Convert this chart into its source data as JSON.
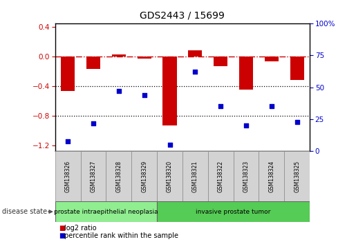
{
  "title": "GDS2443 / 15699",
  "samples": [
    "GSM138326",
    "GSM138327",
    "GSM138328",
    "GSM138329",
    "GSM138320",
    "GSM138321",
    "GSM138322",
    "GSM138323",
    "GSM138324",
    "GSM138325"
  ],
  "log2_ratio": [
    -0.47,
    -0.17,
    0.03,
    -0.03,
    -0.93,
    0.08,
    -0.13,
    -0.45,
    -0.07,
    -0.32
  ],
  "percentile_rank": [
    8,
    22,
    47,
    44,
    5,
    62,
    35,
    20,
    35,
    23
  ],
  "ylim_left": [
    -1.28,
    0.45
  ],
  "ylim_right": [
    0,
    100
  ],
  "yticks_left": [
    -1.2,
    -0.8,
    -0.4,
    0.0,
    0.4
  ],
  "yticks_right": [
    0,
    25,
    50,
    75,
    100
  ],
  "bar_color": "#cc0000",
  "scatter_color": "#0000cc",
  "dash_color": "#cc0000",
  "dotted_color": "#000000",
  "groups": [
    {
      "label": "prostate intraepithelial neoplasia",
      "start": 0,
      "end": 4,
      "color": "#90ee90"
    },
    {
      "label": "invasive prostate tumor",
      "start": 4,
      "end": 10,
      "color": "#55cc55"
    }
  ],
  "disease_state_label": "disease state",
  "legend_items": [
    {
      "label": "log2 ratio",
      "color": "#cc0000"
    },
    {
      "label": "percentile rank within the sample",
      "color": "#0000cc"
    }
  ],
  "group_box_color": "#aaaaaa",
  "sample_box_color": "#d3d3d3"
}
